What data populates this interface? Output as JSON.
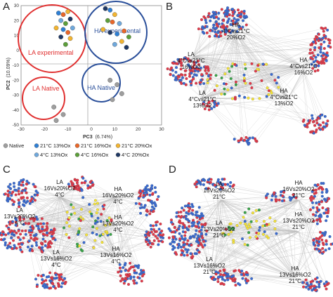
{
  "colors": {
    "native": "#9e9e9e",
    "ox21_13": "#2e7fd4",
    "ox21_16": "#e8672a",
    "ox21_20": "#f2b431",
    "ox4_13": "#6fa8dc",
    "ox4_16": "#5c9e3a",
    "ox4_20": "#1f3864",
    "la_circle": "#e03030",
    "ha_circle": "#2a4f9a",
    "net_red": "#e03a4a",
    "net_blue": "#3a6bd0",
    "net_yellow": "#f3e23a",
    "net_green": "#3aa34a",
    "edge": "#bdbdbd"
  },
  "panel_a": {
    "letter": "A",
    "xlabel": "PC3",
    "xlabel_pct": "(6.74%)",
    "ylabel": "PC2",
    "ylabel_pct": "(10.09%)",
    "xticks": [
      "-30",
      "-20",
      "-10",
      "0",
      "10",
      "20",
      "30"
    ],
    "yticks": [
      "30",
      "20",
      "10",
      "0",
      "-10",
      "-20",
      "-30",
      "-40",
      "-50"
    ],
    "groups": {
      "la_experimental": "LA experimental",
      "ha_experimental": "HA experimental",
      "ha_native": "HA Native",
      "la_native": "LA Native"
    },
    "legend": [
      {
        "key": "native",
        "label": "Native"
      },
      {
        "key": "ox21_13",
        "label": "21°C 13%Ox"
      },
      {
        "key": "ox21_16",
        "label": "21°C 16%Ox"
      },
      {
        "key": "ox21_20",
        "label": "21°C 20%Ox"
      },
      {
        "key": "ox4_13",
        "label": "4°C 13%Ox"
      },
      {
        "key": "ox4_16",
        "label": "4°C 16%Ox"
      },
      {
        "key": "ox4_20",
        "label": "4°C 20%Ox"
      }
    ],
    "points": [
      {
        "x": -14,
        "y": 25,
        "c": "ox21_13"
      },
      {
        "x": -12,
        "y": 24,
        "c": "ox21_16"
      },
      {
        "x": -10,
        "y": 26,
        "c": "ox21_20"
      },
      {
        "x": -13,
        "y": 20,
        "c": "ox4_13"
      },
      {
        "x": -11,
        "y": 18,
        "c": "ox4_16"
      },
      {
        "x": -9,
        "y": 21,
        "c": "ox4_20"
      },
      {
        "x": -15,
        "y": 15,
        "c": "ox21_20"
      },
      {
        "x": -12,
        "y": 14,
        "c": "ox21_13"
      },
      {
        "x": -10,
        "y": 12,
        "c": "ox21_16"
      },
      {
        "x": -8,
        "y": 15,
        "c": "ox4_13"
      },
      {
        "x": -13,
        "y": 9,
        "c": "ox4_20"
      },
      {
        "x": -9,
        "y": 8,
        "c": "ox21_20"
      },
      {
        "x": -11,
        "y": 4,
        "c": "ox4_16"
      },
      {
        "x": 6,
        "y": 28,
        "c": "ox4_20"
      },
      {
        "x": 8,
        "y": 27,
        "c": "ox21_13"
      },
      {
        "x": 10,
        "y": 24,
        "c": "ox21_20"
      },
      {
        "x": 7,
        "y": 20,
        "c": "ox4_16"
      },
      {
        "x": 9,
        "y": 19,
        "c": "ox21_16"
      },
      {
        "x": 12,
        "y": 18,
        "c": "ox4_13"
      },
      {
        "x": 5,
        "y": 14,
        "c": "ox21_20"
      },
      {
        "x": 8,
        "y": 12,
        "c": "ox4_20"
      },
      {
        "x": 11,
        "y": 11,
        "c": "ox21_13"
      },
      {
        "x": 14,
        "y": 13,
        "c": "ox21_16"
      },
      {
        "x": 16,
        "y": 9,
        "c": "ox4_16"
      },
      {
        "x": 13,
        "y": 6,
        "c": "ox21_20"
      },
      {
        "x": 10,
        "y": 4,
        "c": "ox4_13"
      },
      {
        "x": 15,
        "y": 2,
        "c": "ox4_20"
      },
      {
        "x": 8,
        "y": -20,
        "c": "native"
      },
      {
        "x": 11,
        "y": -23,
        "c": "native"
      },
      {
        "x": 13,
        "y": -29,
        "c": "native"
      },
      {
        "x": 9,
        "y": -33,
        "c": "native"
      },
      {
        "x": -16,
        "y": -38,
        "c": "native"
      },
      {
        "x": -12,
        "y": -43,
        "c": "native"
      },
      {
        "x": -15,
        "y": -47,
        "c": "native"
      }
    ]
  },
  "panel_b": {
    "letter": "B",
    "labels": [
      {
        "lines": [
          "LA",
          "4°Cvs21°C",
          "16%O2"
        ]
      },
      {
        "lines": [
          "HA",
          "4°Cvs21°C",
          "20%O2"
        ]
      },
      {
        "lines": [
          "HA",
          "4°Cvs21°C",
          "16%O2"
        ]
      },
      {
        "lines": [
          "LA",
          "4°Cvs21°C",
          "13%O2"
        ]
      },
      {
        "lines": [
          "HA",
          "4°Cvs21°C",
          "13%O2"
        ]
      }
    ]
  },
  "panel_c": {
    "letter": "C",
    "labels": [
      {
        "lines": [
          "LA",
          "16Vs20%O2",
          "4°C"
        ]
      },
      {
        "lines": [
          "LA",
          "13Vs20%O2",
          "4°C"
        ]
      },
      {
        "lines": [
          "HA",
          "16Vs20%O2",
          "4°C"
        ]
      },
      {
        "lines": [
          "HA",
          "13Vs20%O2",
          "4°C"
        ]
      },
      {
        "lines": [
          "LA",
          "13Vs16%O2",
          "4°C"
        ]
      },
      {
        "lines": [
          "HA",
          "13Vs16%O2",
          "4°C"
        ]
      }
    ]
  },
  "panel_d": {
    "letter": "D",
    "labels": [
      {
        "lines": [
          "LA",
          "16Vs20%O2",
          "21°C"
        ]
      },
      {
        "lines": [
          "HA",
          "16Vs20%O2",
          "21°C"
        ]
      },
      {
        "lines": [
          "LA",
          "13Vs20%O2",
          "21°C"
        ]
      },
      {
        "lines": [
          "HA",
          "13Vs20%O2",
          "21°C"
        ]
      },
      {
        "lines": [
          "LA",
          "13Vs16%O2",
          "21°C"
        ]
      },
      {
        "lines": [
          "HA",
          "13Vs16%O2",
          "21°C"
        ]
      }
    ]
  }
}
